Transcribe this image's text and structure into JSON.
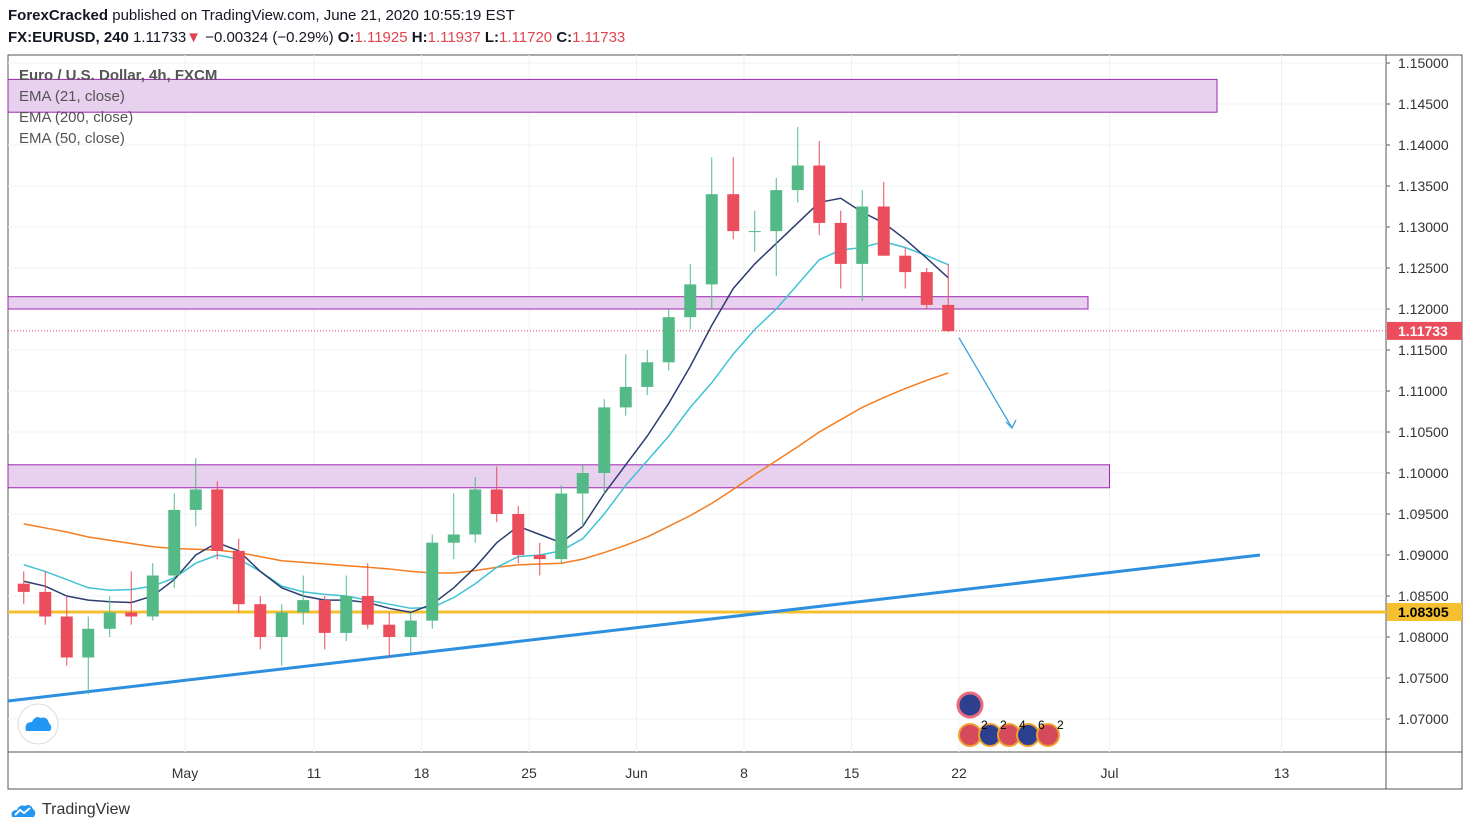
{
  "header": {
    "author": "ForexCracked",
    "published": "published on TradingView.com, June 21, 2020 10:55:19 EST",
    "symbol": "FX:EURUSD, 240",
    "last": "1.11733",
    "change": "−0.00324 (−0.29%)",
    "o_label": "O:",
    "o": "1.11925",
    "h_label": "H:",
    "h": "1.11937",
    "l_label": "L:",
    "l": "1.11720",
    "c_label": "C:",
    "c": "1.11733",
    "down_arrow": "▼"
  },
  "legend": {
    "title": "Euro / U.S. Dollar, 4h, FXCM",
    "ema1": "EMA (21, close)",
    "ema2": "EMA (200, close)",
    "ema3": "EMA (50, close)"
  },
  "branding": "TradingView",
  "colors": {
    "up": "#53b987",
    "down": "#eb4d5c",
    "ema21": "#2c3e70",
    "ema50": "#3ec3d5",
    "ema200": "#f57c1f",
    "zone": "#e8d1ee",
    "zone_border": "#9c27b0",
    "trend": "#2d8fe0",
    "support": "#f5c02f",
    "arrow": "#3aa0dc"
  },
  "chart_data": {
    "type": "candlestick",
    "ylim": [
      1.0665,
      1.1515
    ],
    "yticks": [
      "1.15000",
      "1.14500",
      "1.14000",
      "1.13500",
      "1.13000",
      "1.12500",
      "1.12000",
      "1.11500",
      "1.11000",
      "1.10500",
      "1.10000",
      "1.09500",
      "1.09000",
      "1.08500",
      "1.08000",
      "1.07500",
      "1.07000"
    ],
    "xticks": [
      {
        "label": "May",
        "date": "2020-05-01"
      },
      {
        "label": "11",
        "date": "2020-05-11"
      },
      {
        "label": "18",
        "date": "2020-05-18"
      },
      {
        "label": "25",
        "date": "2020-05-25"
      },
      {
        "label": "Jun",
        "date": "2020-06-01"
      },
      {
        "label": "8",
        "date": "2020-06-08"
      },
      {
        "label": "15",
        "date": "2020-06-15"
      },
      {
        "label": "22",
        "date": "2020-06-22"
      },
      {
        "label": "Jul",
        "date": "2020-07-01"
      },
      {
        "label": "13",
        "date": "2020-07-13"
      }
    ],
    "candles": [
      [
        "2020-04-21",
        1.0865,
        1.088,
        1.084,
        1.0855
      ],
      [
        "2020-04-22",
        1.0855,
        1.088,
        1.0815,
        1.0825
      ],
      [
        "2020-04-23",
        1.0825,
        1.085,
        1.0765,
        1.0775
      ],
      [
        "2020-04-24",
        1.0775,
        1.0825,
        1.073,
        1.081
      ],
      [
        "2020-04-27",
        1.081,
        1.085,
        1.08,
        1.083
      ],
      [
        "2020-04-28",
        1.083,
        1.088,
        1.0815,
        1.0825
      ],
      [
        "2020-04-29",
        1.0825,
        1.089,
        1.082,
        1.0875
      ],
      [
        "2020-04-30",
        1.0875,
        1.0975,
        1.086,
        1.0955
      ],
      [
        "2020-05-01",
        1.0955,
        1.1018,
        1.0935,
        1.098
      ],
      [
        "2020-05-04",
        1.098,
        1.099,
        1.0895,
        1.0905
      ],
      [
        "2020-05-05",
        1.0905,
        1.092,
        1.083,
        1.084
      ],
      [
        "2020-05-06",
        1.084,
        1.085,
        1.0785,
        1.08
      ],
      [
        "2020-05-07",
        1.08,
        1.084,
        1.0765,
        1.083
      ],
      [
        "2020-05-08",
        1.083,
        1.0875,
        1.0815,
        1.0845
      ],
      [
        "2020-05-11",
        1.0845,
        1.085,
        1.0785,
        1.0805
      ],
      [
        "2020-05-12",
        1.0805,
        1.0875,
        1.0795,
        1.085
      ],
      [
        "2020-05-13",
        1.085,
        1.089,
        1.081,
        1.0815
      ],
      [
        "2020-05-14",
        1.0815,
        1.083,
        1.0775,
        1.08
      ],
      [
        "2020-05-15",
        1.08,
        1.083,
        1.078,
        1.082
      ],
      [
        "2020-05-18",
        1.082,
        1.0925,
        1.081,
        1.0915
      ],
      [
        "2020-05-19",
        1.0915,
        1.0975,
        1.0895,
        1.0925
      ],
      [
        "2020-05-20",
        1.0925,
        1.0995,
        1.0915,
        1.098
      ],
      [
        "2020-05-21",
        1.098,
        1.1008,
        1.094,
        1.095
      ],
      [
        "2020-05-22",
        1.095,
        1.096,
        1.089,
        1.09
      ],
      [
        "2020-05-25",
        1.09,
        1.0915,
        1.0875,
        1.0895
      ],
      [
        "2020-05-26",
        1.0895,
        1.0985,
        1.089,
        1.0975
      ],
      [
        "2020-05-27",
        1.0975,
        1.101,
        1.0935,
        1.1
      ],
      [
        "2020-05-28",
        1.1,
        1.109,
        1.0975,
        1.108
      ],
      [
        "2020-05-29",
        1.108,
        1.1145,
        1.107,
        1.1105
      ],
      [
        "2020-06-01",
        1.1105,
        1.115,
        1.1095,
        1.1135
      ],
      [
        "2020-06-02",
        1.1135,
        1.12,
        1.1125,
        1.119
      ],
      [
        "2020-06-03",
        1.119,
        1.1255,
        1.1175,
        1.123
      ],
      [
        "2020-06-04",
        1.123,
        1.1385,
        1.12,
        1.134
      ],
      [
        "2020-06-05",
        1.134,
        1.1385,
        1.1285,
        1.1295
      ],
      [
        "2020-06-08",
        1.1295,
        1.132,
        1.127,
        1.1295
      ],
      [
        "2020-06-09",
        1.1295,
        1.136,
        1.124,
        1.1345
      ],
      [
        "2020-06-10",
        1.1345,
        1.1422,
        1.133,
        1.1375
      ],
      [
        "2020-06-11",
        1.1375,
        1.1405,
        1.129,
        1.1305
      ],
      [
        "2020-06-12",
        1.1305,
        1.132,
        1.1225,
        1.1255
      ],
      [
        "2020-06-15",
        1.1255,
        1.1345,
        1.121,
        1.1325
      ],
      [
        "2020-06-16",
        1.1325,
        1.1355,
        1.1265,
        1.1265
      ],
      [
        "2020-06-17",
        1.1265,
        1.1275,
        1.1225,
        1.1245
      ],
      [
        "2020-06-18",
        1.1245,
        1.125,
        1.12,
        1.1205
      ],
      [
        "2020-06-19",
        1.1205,
        1.1255,
        1.1172,
        1.1173
      ]
    ],
    "ema21": [
      1.0868,
      1.0862,
      1.085,
      1.0845,
      1.0843,
      1.0842,
      1.085,
      1.087,
      1.09,
      1.0915,
      1.0905,
      1.088,
      1.086,
      1.085,
      1.0845,
      1.0845,
      1.0842,
      1.0835,
      1.083,
      1.084,
      1.086,
      1.0885,
      1.0915,
      1.0935,
      1.0925,
      1.0915,
      1.0935,
      1.0975,
      1.101,
      1.1045,
      1.1085,
      1.113,
      1.118,
      1.1225,
      1.1255,
      1.128,
      1.1305,
      1.133,
      1.1335,
      1.1318,
      1.1305,
      1.1285,
      1.1262,
      1.1238
    ],
    "ema50": [
      1.0888,
      1.088,
      1.087,
      1.086,
      1.0857,
      1.0858,
      1.0862,
      1.0872,
      1.089,
      1.09,
      1.0895,
      1.088,
      1.0862,
      1.0855,
      1.0852,
      1.085,
      1.0845,
      1.084,
      1.0835,
      1.0836,
      1.0848,
      1.0865,
      1.0885,
      1.0898,
      1.09,
      1.0905,
      1.092,
      1.095,
      1.0985,
      1.1015,
      1.1045,
      1.108,
      1.111,
      1.1145,
      1.1175,
      1.12,
      1.123,
      1.126,
      1.1272,
      1.1275,
      1.1282,
      1.1275,
      1.1265,
      1.1254
    ],
    "ema200": [
      1.0938,
      1.0933,
      1.0928,
      1.0922,
      1.0918,
      1.0914,
      1.091,
      1.0908,
      1.0907,
      1.0906,
      1.0903,
      1.0898,
      1.0893,
      1.0891,
      1.0889,
      1.0887,
      1.0885,
      1.0883,
      1.088,
      1.0878,
      1.0878,
      1.0881,
      1.0885,
      1.0888,
      1.0889,
      1.089,
      1.0895,
      1.0903,
      1.0912,
      1.0922,
      1.0935,
      1.0948,
      1.0963,
      1.098,
      1.0998,
      1.1015,
      1.1032,
      1.105,
      1.1065,
      1.108,
      1.1092,
      1.1103,
      1.1113,
      1.1122
    ],
    "zones": [
      {
        "top": 1.148,
        "bottom": 1.144,
        "from": "2020-04-21",
        "to": "2020-07-08"
      },
      {
        "top": 1.1215,
        "bottom": 1.12,
        "from": "2020-04-21",
        "to": "2020-06-30"
      },
      {
        "top": 1.101,
        "bottom": 1.0982,
        "from": "2020-04-21",
        "to": "2020-07-01"
      }
    ],
    "trendline": {
      "from": {
        "date": "2020-04-20",
        "price": 1.0722
      },
      "to": {
        "date": "2020-07-10",
        "price": 1.09
      }
    },
    "support_level": {
      "price": 1.08305,
      "label": "1.08305"
    },
    "last_price": {
      "price": 1.11733,
      "label": "1.11733"
    },
    "projection_arrow": {
      "from": {
        "date": "2020-06-22",
        "price": 1.1165
      },
      "to": {
        "date": "2020-06-24",
        "price": 1.1055
      }
    },
    "events": {
      "top": "EU",
      "counts": [
        "2",
        "2",
        "4",
        "6",
        "2"
      ]
    }
  }
}
